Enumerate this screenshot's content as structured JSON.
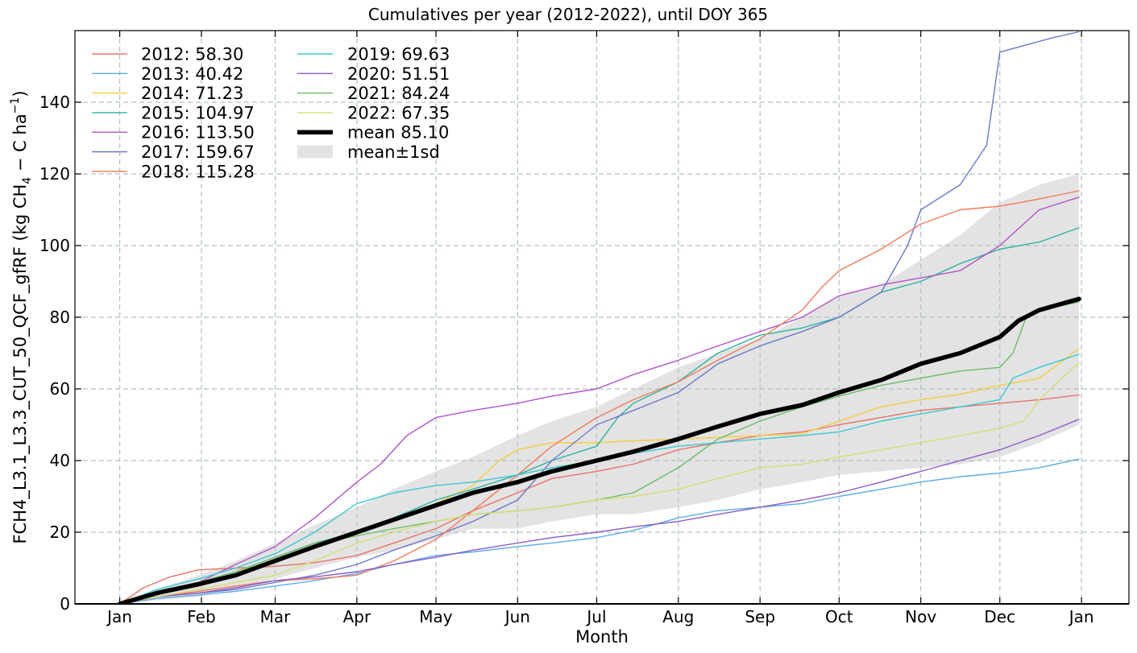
{
  "chart_data": {
    "type": "line",
    "title": "Cumulatives per year (2012-2022), until DOY 365",
    "xlabel": "Month",
    "ylabel_parts": [
      "FCH4_L3.1_L3.3_CUT_50_QCF_gfRF  (kg CH",
      "4",
      " − C ha",
      "−1",
      ")"
    ],
    "x_ticks": [
      "Jan",
      "Feb",
      "Mar",
      "Apr",
      "May",
      "Jun",
      "Jul",
      "Aug",
      "Sep",
      "Oct",
      "Nov",
      "Dec",
      "Jan"
    ],
    "x_tick_doy": [
      1,
      32,
      60,
      91,
      121,
      152,
      182,
      213,
      244,
      274,
      305,
      335,
      366
    ],
    "xlim": [
      -16,
      384
    ],
    "ylim": [
      0,
      160
    ],
    "y_ticks": [
      0,
      20,
      40,
      60,
      80,
      100,
      120,
      140
    ],
    "grid": true,
    "legend_position": "top-left",
    "series": [
      {
        "name": "2012: 58.30",
        "color": "#e8736a",
        "x": [
          1,
          10,
          20,
          31,
          45,
          60,
          75,
          91,
          105,
          121,
          135,
          152,
          165,
          182,
          196,
          213,
          228,
          244,
          260,
          274,
          290,
          305,
          320,
          335,
          350,
          365
        ],
        "values": [
          0,
          4.5,
          7.5,
          9.5,
          10,
          10.5,
          11.5,
          13.5,
          17,
          21,
          26,
          31,
          35,
          37,
          39,
          43,
          45,
          47,
          48,
          50,
          52,
          54,
          55,
          56,
          57,
          58.3
        ]
      },
      {
        "name": "2013: 40.42",
        "color": "#5aacea",
        "x": [
          1,
          15,
          31,
          45,
          60,
          75,
          91,
          105,
          121,
          135,
          152,
          165,
          182,
          196,
          213,
          228,
          244,
          260,
          274,
          290,
          305,
          320,
          335,
          350,
          365
        ],
        "values": [
          0,
          1.5,
          2.5,
          3.5,
          5,
          6.5,
          8.5,
          11,
          13.5,
          14.5,
          16,
          17,
          18.5,
          20.5,
          24,
          26,
          27,
          28,
          30,
          32,
          34,
          35.5,
          36.5,
          38,
          40.42
        ]
      },
      {
        "name": "2014: 71.23",
        "color": "#f4cd3c",
        "x": [
          1,
          15,
          31,
          45,
          60,
          75,
          91,
          105,
          121,
          135,
          145,
          152,
          165,
          182,
          196,
          213,
          228,
          244,
          260,
          274,
          290,
          305,
          320,
          335,
          350,
          365
        ],
        "values": [
          0,
          3,
          6,
          9,
          12,
          16,
          20,
          24,
          28,
          33,
          40,
          43,
          45,
          45,
          45.5,
          46,
          46.5,
          47,
          47.5,
          51,
          55,
          57,
          58.5,
          61,
          63,
          71.23
        ]
      },
      {
        "name": "2015: 104.97",
        "color": "#2ab5a0",
        "x": [
          1,
          15,
          31,
          45,
          60,
          75,
          91,
          105,
          121,
          135,
          152,
          165,
          182,
          190,
          196,
          213,
          228,
          244,
          260,
          274,
          290,
          305,
          320,
          335,
          350,
          365
        ],
        "values": [
          0,
          3,
          6,
          9,
          13,
          17,
          20,
          24,
          29,
          32,
          36,
          40,
          44,
          52,
          56,
          62,
          70,
          75,
          77,
          80,
          87,
          90,
          95,
          99,
          101,
          104.97
        ]
      },
      {
        "name": "2016: 113.50",
        "color": "#b054c8",
        "x": [
          1,
          15,
          31,
          45,
          60,
          75,
          91,
          100,
          110,
          121,
          135,
          152,
          165,
          182,
          196,
          213,
          228,
          244,
          260,
          274,
          290,
          305,
          320,
          335,
          350,
          365
        ],
        "values": [
          0,
          3,
          6,
          11,
          16,
          24,
          34,
          39,
          47,
          52,
          54,
          56,
          58,
          60,
          64,
          68,
          72,
          76,
          80,
          86,
          89,
          91,
          93,
          100,
          110,
          113.5
        ]
      },
      {
        "name": "2017: 159.67",
        "color": "#6b78c8",
        "x": [
          1,
          15,
          31,
          45,
          60,
          75,
          91,
          105,
          121,
          135,
          152,
          165,
          182,
          196,
          213,
          228,
          244,
          260,
          274,
          290,
          300,
          305,
          320,
          330,
          335,
          345,
          355,
          365
        ],
        "values": [
          0,
          2,
          3,
          4,
          6,
          8,
          11,
          15,
          19,
          23,
          29,
          40,
          50,
          54,
          59,
          67,
          72,
          76,
          80,
          87,
          100,
          110,
          117,
          128,
          154,
          156,
          158,
          159.67
        ]
      },
      {
        "name": "2018: 115.28",
        "color": "#f27a58",
        "x": [
          1,
          15,
          31,
          45,
          60,
          75,
          91,
          105,
          121,
          135,
          152,
          165,
          182,
          196,
          213,
          228,
          244,
          260,
          267,
          274,
          290,
          305,
          320,
          335,
          350,
          365
        ],
        "values": [
          0,
          2,
          3.5,
          5,
          6.5,
          7,
          8,
          12,
          18,
          26,
          36,
          44,
          52,
          57,
          62,
          68,
          74,
          82,
          88,
          93,
          99,
          106,
          110,
          111,
          113,
          115.28
        ]
      },
      {
        "name": "2019: 69.63",
        "color": "#3ac8d2",
        "x": [
          1,
          15,
          31,
          45,
          60,
          75,
          91,
          105,
          121,
          135,
          152,
          165,
          182,
          196,
          213,
          228,
          244,
          260,
          274,
          290,
          305,
          320,
          335,
          340,
          350,
          365
        ],
        "values": [
          0,
          4,
          7,
          10,
          14,
          20,
          28,
          31,
          33,
          34,
          36,
          38,
          40,
          42,
          44,
          45,
          46,
          47,
          48,
          51,
          53,
          55,
          57,
          63,
          66,
          69.63
        ]
      },
      {
        "name": "2020: 51.51",
        "color": "#8a5cc8",
        "x": [
          1,
          15,
          31,
          45,
          60,
          75,
          91,
          105,
          121,
          135,
          152,
          165,
          182,
          196,
          213,
          228,
          244,
          260,
          274,
          290,
          305,
          320,
          335,
          350,
          365
        ],
        "values": [
          0,
          2,
          3,
          4.5,
          6.5,
          7.5,
          9,
          11,
          13,
          15,
          17,
          18.5,
          20,
          21.5,
          23,
          25,
          27,
          29,
          31,
          34,
          37,
          40,
          43,
          47,
          51.51
        ]
      },
      {
        "name": "2021: 84.24",
        "color": "#6cbc6a",
        "x": [
          1,
          15,
          31,
          45,
          60,
          75,
          91,
          105,
          121,
          135,
          152,
          165,
          182,
          196,
          213,
          228,
          244,
          260,
          274,
          290,
          305,
          320,
          335,
          340,
          345,
          350,
          365
        ],
        "values": [
          0,
          3,
          6,
          9,
          13,
          17,
          19,
          21,
          23,
          25,
          26,
          27,
          29,
          31,
          38,
          46,
          51,
          55,
          58,
          61,
          63,
          65,
          66,
          70,
          80,
          82,
          84.24
        ]
      },
      {
        "name": "2022: 67.35",
        "color": "#d2e070",
        "x": [
          1,
          15,
          31,
          45,
          60,
          75,
          91,
          105,
          121,
          135,
          152,
          165,
          182,
          196,
          213,
          228,
          244,
          260,
          274,
          290,
          305,
          320,
          335,
          344,
          350,
          365
        ],
        "values": [
          0,
          2,
          4,
          6,
          8,
          12,
          17,
          20,
          23,
          25,
          26,
          27,
          29,
          30,
          32,
          35,
          38,
          39,
          41,
          43,
          45,
          47,
          49,
          51,
          57,
          67.35
        ]
      },
      {
        "name": "mean 85.10",
        "color": "#000000",
        "x": [
          1,
          15,
          31,
          45,
          60,
          75,
          91,
          105,
          121,
          135,
          152,
          165,
          182,
          196,
          213,
          228,
          244,
          260,
          274,
          290,
          305,
          320,
          335,
          342,
          350,
          365
        ],
        "values": [
          0,
          3,
          5.5,
          8,
          12,
          16,
          20,
          23.5,
          27.5,
          31,
          34,
          37,
          40,
          42.5,
          46,
          49.5,
          53,
          55.5,
          59,
          62.5,
          67,
          70,
          74.5,
          79,
          82,
          85.1
        ]
      }
    ],
    "band": {
      "name": "mean±1sd",
      "color": "#e3e3e3",
      "x": [
        1,
        15,
        31,
        45,
        60,
        75,
        91,
        105,
        121,
        135,
        152,
        165,
        182,
        196,
        213,
        228,
        244,
        260,
        274,
        290,
        305,
        320,
        335,
        350,
        365
      ],
      "upper": [
        0,
        4,
        8,
        12,
        17,
        22,
        27,
        32,
        37,
        41,
        47,
        51,
        55,
        60,
        66,
        70,
        74,
        80,
        86,
        89,
        96,
        103,
        112,
        117,
        120
      ],
      "lower": [
        0,
        1,
        2,
        4,
        7,
        10,
        13,
        15,
        18,
        21,
        21,
        23,
        25,
        25,
        27,
        29,
        32,
        34,
        36,
        37,
        38,
        39,
        41,
        45,
        50
      ]
    },
    "legend_col1": [
      "2012: 58.30",
      "2013: 40.42",
      "2014: 71.23",
      "2015: 104.97",
      "2016: 113.50",
      "2017: 159.67",
      "2018: 115.28"
    ],
    "legend_col2": [
      "2019: 69.63",
      "2020: 51.51",
      "2021: 84.24",
      "2022: 67.35",
      "mean 85.10",
      "mean±1sd"
    ]
  }
}
